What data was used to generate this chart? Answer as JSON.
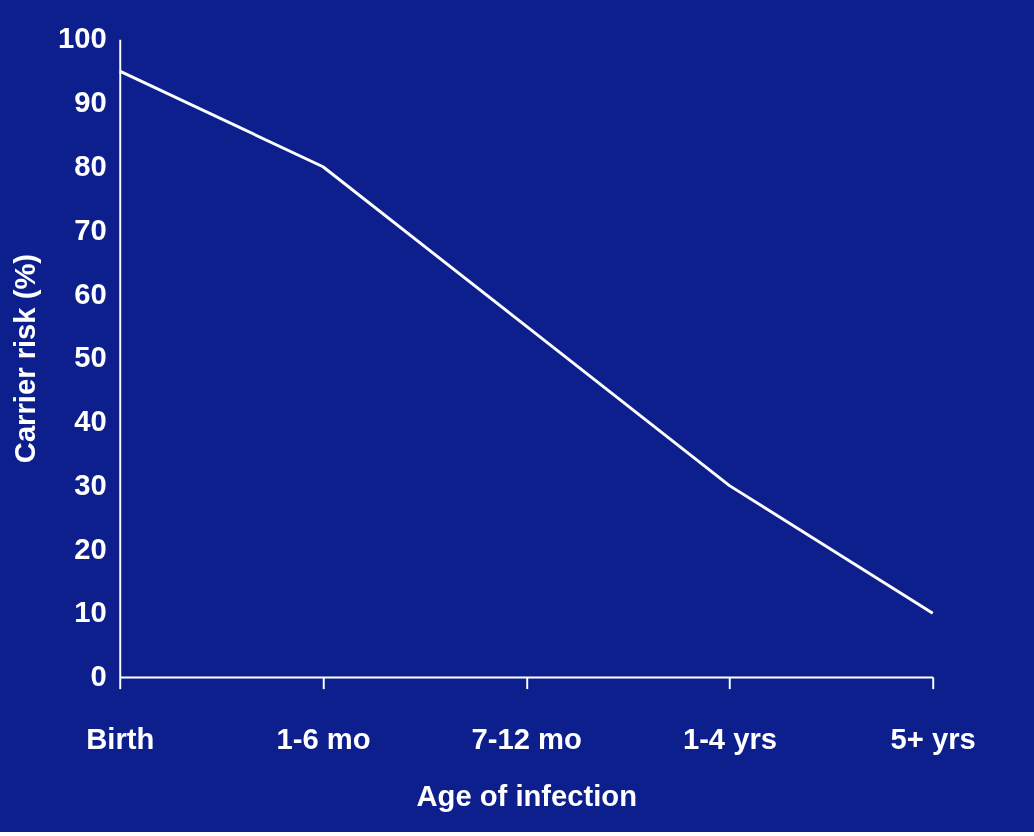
{
  "chart_data": {
    "type": "line",
    "xlabel": "Age of infection",
    "ylabel": "Carrier risk (%)",
    "categories": [
      "Birth",
      "1-6 mo",
      "7-12 mo",
      "1-4 yrs",
      "5+ yrs"
    ],
    "series": [
      {
        "color": "#ffffff",
        "values": [
          95,
          80,
          55,
          30,
          10
        ]
      }
    ],
    "ylim": [
      0,
      100
    ],
    "yticks": [
      0,
      10,
      20,
      30,
      40,
      50,
      60,
      70,
      80,
      90,
      100
    ],
    "grid": false,
    "marker": "none",
    "line_style": "solid"
  }
}
